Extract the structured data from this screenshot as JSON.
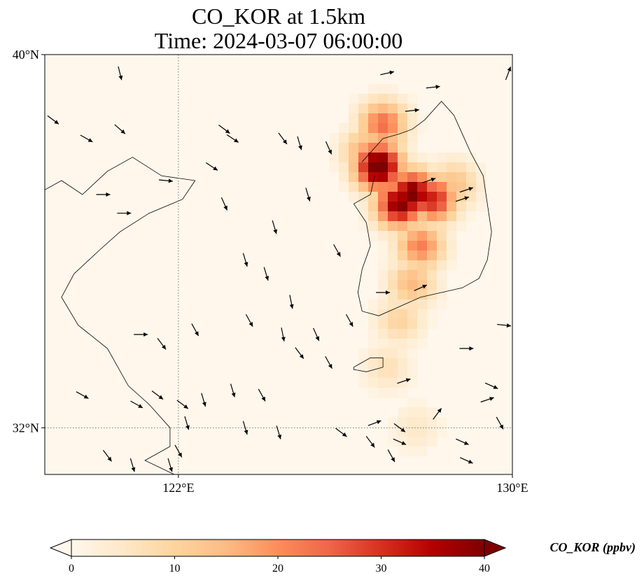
{
  "title": {
    "line1": "CO_KOR at 1.5km",
    "line2": "Time: 2024-03-07 06:00:00"
  },
  "map": {
    "lon_range": [
      118.8,
      130.0
    ],
    "lat_range": [
      31.0,
      40.0
    ],
    "gridlines": {
      "lon": [
        122
      ],
      "lat": [
        32
      ],
      "style": "dotted gray"
    },
    "x_tick_labels": [
      {
        "lon": 122,
        "label": "122°E"
      },
      {
        "lon": 130,
        "label": "130°E"
      }
    ],
    "y_tick_labels": [
      {
        "lat": 40,
        "label": "40°N"
      },
      {
        "lat": 32,
        "label": "32°N"
      }
    ],
    "field_description_units": "ppbv",
    "concentration_field": [
      {
        "lon": 126.8,
        "lat": 37.6,
        "value": 45
      },
      {
        "lon": 127.6,
        "lat": 37.0,
        "value": 42
      },
      {
        "lon": 127.3,
        "lat": 36.8,
        "value": 40
      },
      {
        "lon": 128.1,
        "lat": 36.9,
        "value": 32
      },
      {
        "lon": 126.9,
        "lat": 38.5,
        "value": 24
      },
      {
        "lon": 127.8,
        "lat": 35.9,
        "value": 22
      },
      {
        "lon": 127.6,
        "lat": 35.1,
        "value": 15
      },
      {
        "lon": 127.3,
        "lat": 34.3,
        "value": 10
      },
      {
        "lon": 127.0,
        "lat": 33.3,
        "value": 7
      },
      {
        "lon": 127.7,
        "lat": 32.0,
        "value": 5
      },
      {
        "lon": 126.5,
        "lat": 37.9,
        "value": 18
      },
      {
        "lon": 128.6,
        "lat": 37.2,
        "value": 14
      }
    ],
    "wind_arrows": [
      [
        120.6,
        39.6,
        0.25,
        -1.0
      ],
      [
        119.0,
        38.6,
        0.8,
        -0.6
      ],
      [
        119.8,
        38.2,
        0.9,
        -0.5
      ],
      [
        120.6,
        38.4,
        0.8,
        -0.7
      ],
      [
        123.3,
        38.2,
        0.9,
        -0.6
      ],
      [
        123.1,
        38.4,
        0.8,
        -0.6
      ],
      [
        124.5,
        38.2,
        0.6,
        -0.8
      ],
      [
        124.9,
        38.1,
        0.3,
        -1.0
      ],
      [
        125.6,
        38.0,
        0.4,
        -0.9
      ],
      [
        122.8,
        37.6,
        0.9,
        -0.6
      ],
      [
        121.7,
        37.3,
        1.0,
        -0.1
      ],
      [
        120.2,
        37.0,
        1.0,
        0.0
      ],
      [
        120.7,
        36.6,
        1.0,
        0.0
      ],
      [
        123.1,
        36.8,
        0.4,
        -0.9
      ],
      [
        125.1,
        37.0,
        0.3,
        -1.0
      ],
      [
        124.3,
        36.3,
        0.3,
        -1.0
      ],
      [
        125.8,
        35.8,
        0.5,
        -0.9
      ],
      [
        123.6,
        35.6,
        0.3,
        -1.0
      ],
      [
        124.1,
        35.3,
        0.3,
        -1.0
      ],
      [
        124.7,
        34.7,
        0.2,
        -1.0
      ],
      [
        126.9,
        34.9,
        1.0,
        0.0
      ],
      [
        126.1,
        34.3,
        0.5,
        -0.9
      ],
      [
        125.3,
        34.0,
        0.4,
        -0.9
      ],
      [
        124.5,
        34.0,
        0.2,
        -1.0
      ],
      [
        123.7,
        34.3,
        0.5,
        -0.9
      ],
      [
        122.4,
        34.1,
        0.5,
        -0.9
      ],
      [
        121.1,
        34.0,
        1.0,
        0.0
      ],
      [
        121.6,
        33.8,
        0.6,
        -0.8
      ],
      [
        124.9,
        33.6,
        0.6,
        -0.8
      ],
      [
        125.6,
        33.4,
        0.5,
        -0.9
      ],
      [
        124.0,
        32.7,
        0.5,
        -0.9
      ],
      [
        123.3,
        32.8,
        0.3,
        -1.0
      ],
      [
        122.6,
        32.6,
        0.3,
        -1.0
      ],
      [
        121.5,
        32.7,
        0.8,
        -0.6
      ],
      [
        122.2,
        32.1,
        0.3,
        -1.0
      ],
      [
        123.6,
        32.0,
        0.3,
        -1.0
      ],
      [
        124.4,
        31.9,
        0.3,
        -1.0
      ],
      [
        122.1,
        32.5,
        0.8,
        -0.6
      ],
      [
        125.9,
        31.9,
        0.8,
        -0.6
      ],
      [
        126.7,
        32.1,
        0.8,
        0.3
      ],
      [
        127.3,
        32.0,
        0.8,
        -0.6
      ],
      [
        128.2,
        32.3,
        0.6,
        0.8
      ],
      [
        129.7,
        32.1,
        0.5,
        -0.9
      ],
      [
        128.0,
        37.3,
        0.9,
        0.3
      ],
      [
        128.9,
        37.1,
        0.9,
        0.3
      ],
      [
        128.8,
        36.9,
        0.9,
        0.3
      ],
      [
        127.6,
        38.8,
        0.9,
        0.1
      ],
      [
        128.1,
        39.3,
        0.9,
        0.1
      ],
      [
        127.0,
        39.6,
        0.9,
        0.2
      ],
      [
        129.9,
        39.6,
        0.3,
        0.8
      ],
      [
        127.8,
        35.0,
        0.9,
        0.4
      ],
      [
        129.8,
        34.2,
        0.9,
        -0.1
      ],
      [
        128.9,
        33.7,
        1.0,
        0.0
      ],
      [
        129.5,
        32.9,
        0.9,
        -0.4
      ],
      [
        127.4,
        33.0,
        0.9,
        0.3
      ],
      [
        128.9,
        31.3,
        0.9,
        -0.4
      ],
      [
        126.6,
        31.7,
        0.6,
        -0.8
      ],
      [
        127.1,
        31.4,
        0.5,
        -0.9
      ],
      [
        127.3,
        31.7,
        0.9,
        -0.4
      ],
      [
        129.4,
        32.6,
        0.9,
        0.3
      ],
      [
        128.8,
        31.7,
        0.9,
        -0.4
      ],
      [
        121.8,
        31.2,
        0.3,
        -1.0
      ],
      [
        122.0,
        31.5,
        0.5,
        -0.9
      ],
      [
        120.3,
        31.4,
        0.6,
        -0.8
      ],
      [
        121.0,
        32.5,
        0.9,
        -0.5
      ],
      [
        120.9,
        31.2,
        0.3,
        -1.0
      ],
      [
        119.7,
        32.7,
        0.9,
        -0.5
      ]
    ],
    "korea_mainland_outline": [
      [
        126.4,
        37.7
      ],
      [
        126.6,
        37.9
      ],
      [
        126.9,
        38.2
      ],
      [
        127.3,
        38.3
      ],
      [
        127.6,
        38.4
      ],
      [
        127.9,
        38.6
      ],
      [
        128.3,
        39.0
      ],
      [
        128.6,
        38.7
      ],
      [
        128.8,
        38.3
      ],
      [
        129.0,
        37.9
      ],
      [
        129.3,
        37.4
      ],
      [
        129.4,
        36.8
      ],
      [
        129.5,
        36.2
      ],
      [
        129.4,
        35.6
      ],
      [
        129.2,
        35.2
      ],
      [
        128.8,
        35.0
      ],
      [
        128.3,
        34.9
      ],
      [
        127.8,
        34.8
      ],
      [
        127.3,
        34.6
      ],
      [
        126.8,
        34.4
      ],
      [
        126.4,
        34.5
      ],
      [
        126.3,
        34.9
      ],
      [
        126.4,
        35.4
      ],
      [
        126.6,
        35.9
      ],
      [
        126.5,
        36.4
      ],
      [
        126.2,
        36.8
      ],
      [
        126.6,
        37.0
      ],
      [
        126.7,
        37.4
      ]
    ],
    "china_coast_outline": [
      [
        118.8,
        37.1
      ],
      [
        119.2,
        37.3
      ],
      [
        119.7,
        37.0
      ],
      [
        120.3,
        37.5
      ],
      [
        120.9,
        37.8
      ],
      [
        121.6,
        37.4
      ],
      [
        122.4,
        37.3
      ],
      [
        122.1,
        36.9
      ],
      [
        121.3,
        36.6
      ],
      [
        120.6,
        36.2
      ],
      [
        120.1,
        35.8
      ],
      [
        119.5,
        35.3
      ],
      [
        119.2,
        34.8
      ],
      [
        119.6,
        34.2
      ],
      [
        120.3,
        33.7
      ],
      [
        120.8,
        32.9
      ],
      [
        121.3,
        32.5
      ],
      [
        121.8,
        32.0
      ],
      [
        121.8,
        31.6
      ],
      [
        121.2,
        31.3
      ],
      [
        121.9,
        31.0
      ]
    ],
    "jeju_outline": [
      [
        126.2,
        33.3
      ],
      [
        126.6,
        33.5
      ],
      [
        126.9,
        33.5
      ],
      [
        126.9,
        33.3
      ],
      [
        126.5,
        33.2
      ],
      [
        126.2,
        33.25
      ]
    ]
  },
  "colorbar": {
    "label": "CO_KOR (ppbv)",
    "min": 0,
    "max": 40,
    "ticks": [
      {
        "value": 0,
        "label": "0"
      },
      {
        "value": 10,
        "label": "10"
      },
      {
        "value": 20,
        "label": "20"
      },
      {
        "value": 30,
        "label": "30"
      },
      {
        "value": 40,
        "label": "40"
      }
    ],
    "colormap": [
      "#fff7ec",
      "#fee8c8",
      "#fdd49e",
      "#fdbb84",
      "#fc8d59",
      "#ef6548",
      "#d7301f",
      "#b30000",
      "#7f0000"
    ],
    "extend": "both"
  }
}
